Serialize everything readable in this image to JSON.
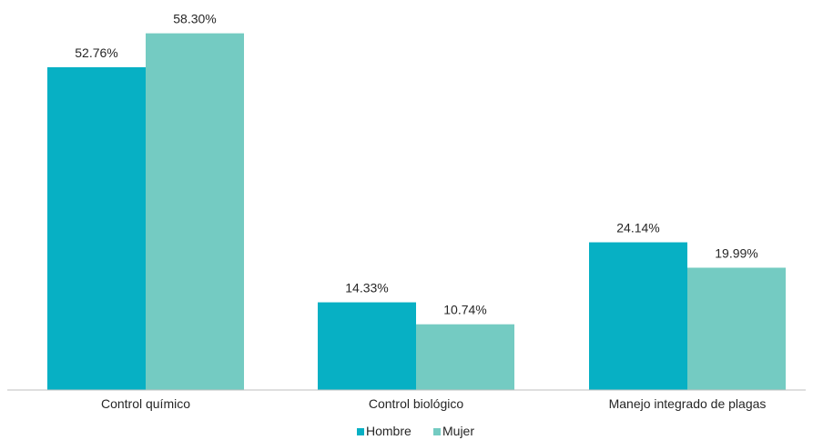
{
  "chart_data": {
    "type": "bar",
    "categories": [
      "Control químico",
      "Control biológico",
      "Manejo integrado de plagas"
    ],
    "series": [
      {
        "name": "Hombre",
        "values": [
          52.76,
          14.33,
          24.14
        ],
        "labels": [
          "52.76%",
          "14.33%",
          "24.14%"
        ],
        "color": "#07B0C4"
      },
      {
        "name": "Mujer",
        "values": [
          58.3,
          10.74,
          19.99
        ],
        "labels": [
          "58.30%",
          "10.74%",
          "19.99%"
        ],
        "color": "#74CBC2"
      }
    ],
    "ylim": [
      0,
      60
    ],
    "grid": false,
    "legend": "bottom-center",
    "title": "",
    "xlabel": "",
    "ylabel": ""
  }
}
